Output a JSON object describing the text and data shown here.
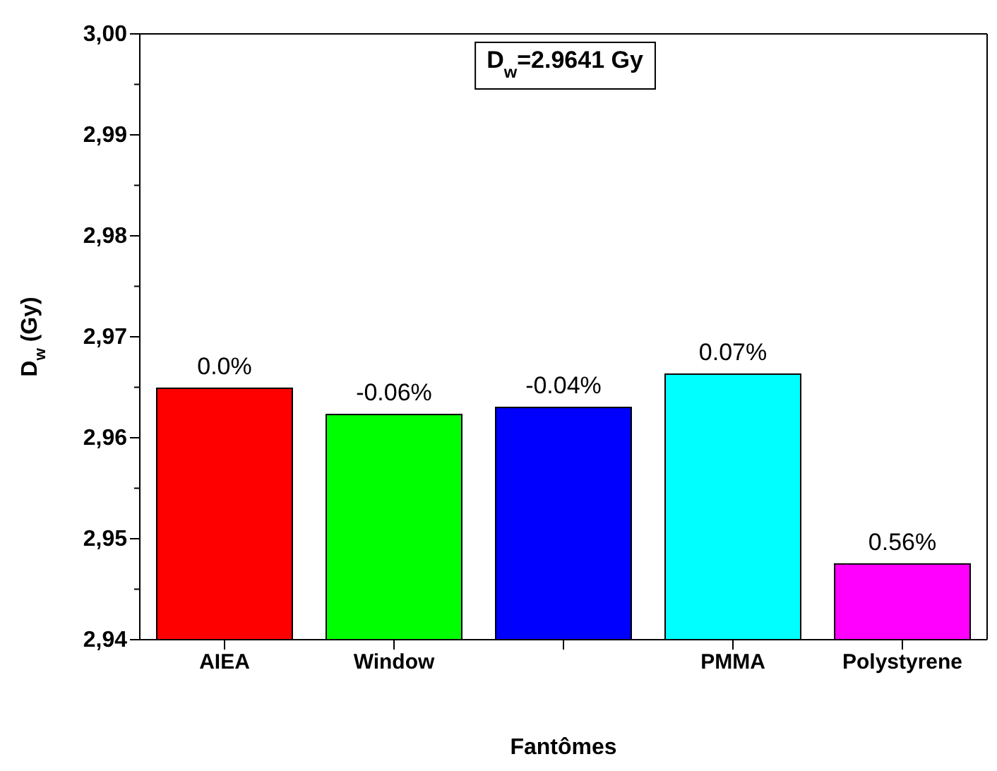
{
  "chart_data": {
    "type": "bar",
    "xlabel": "Fantômes",
    "ylabel": "D$_{w}$ (Gy)",
    "categories": [
      "AIEA",
      "Window",
      null,
      "PMMA",
      "Polystyrene"
    ],
    "values": [
      2.9649,
      2.9623,
      2.963,
      2.9663,
      2.9475
    ],
    "colors": [
      "#ff0000",
      "#00ff00",
      "#0000ff",
      "#00ffff",
      "#ff00ff"
    ],
    "ylim": [
      2.94,
      3.0
    ],
    "yticks": [
      {
        "value": 2.94,
        "label": "2,94"
      },
      {
        "value": 2.945,
        "label": null
      },
      {
        "value": 2.95,
        "label": "2,95"
      },
      {
        "value": 2.955,
        "label": null
      },
      {
        "value": 2.96,
        "label": "2,96"
      },
      {
        "value": 2.965,
        "label": null
      },
      {
        "value": 2.97,
        "label": "2,97"
      },
      {
        "value": 2.975,
        "label": null
      },
      {
        "value": 2.98,
        "label": "2,98"
      },
      {
        "value": 2.985,
        "label": null
      },
      {
        "value": 2.99,
        "label": "2,99"
      },
      {
        "value": 2.995,
        "label": null
      },
      {
        "value": 3.0,
        "label": "3,00"
      }
    ],
    "annotations": [
      "D$_{w}$=2.9641 Gy",
      {
        "text": "0.0%",
        "x": "AIEA",
        "y": 2.9649
      },
      {
        "text": "-0.06%",
        "x": "Window",
        "y": 2.9623
      },
      {
        "text": "-0.04%",
        "y": 2.963
      },
      {
        "text": "0.07%",
        "x": "PMMA",
        "y": 2.9663
      },
      {
        "text": "0.56%",
        "x": "Polystyrene",
        "y": 2.9475
      }
    ],
    "grid": false
  }
}
